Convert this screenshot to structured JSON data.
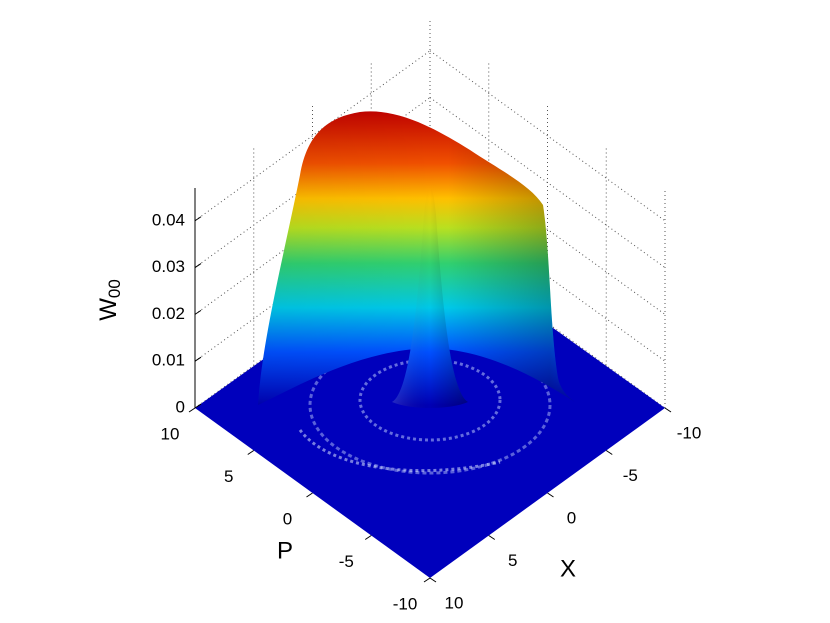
{
  "chart_data": {
    "type": "surface",
    "xlabel": "X",
    "ylabel": "P",
    "zlabel": "W",
    "zlabel_subscript": "00",
    "xlim": [
      -10,
      10
    ],
    "xticks": [
      -10,
      -5,
      0,
      5,
      10
    ],
    "ylim": [
      -10,
      10
    ],
    "yticks": [
      -10,
      -5,
      0,
      5,
      10
    ],
    "zlim": [
      0,
      0.047
    ],
    "zticks": [
      0,
      0.01,
      0.02,
      0.03,
      0.04
    ],
    "grid": true,
    "colormap": "jet"
  }
}
